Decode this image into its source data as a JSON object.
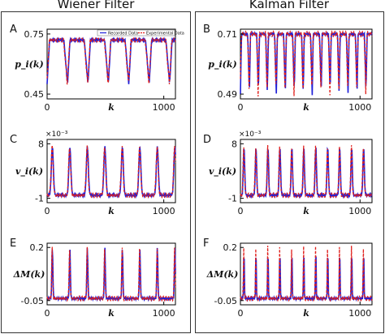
{
  "columns": [
    "Wiener Filter",
    "Kalman Filter"
  ],
  "chart_data": [
    {
      "panel": "A",
      "type": "line",
      "ylabel": "p_i(k)",
      "xlabel": "k",
      "yticks": [
        "0.45",
        "0.75"
      ],
      "ylim": [
        0.45,
        0.75
      ],
      "xticks": [
        "0",
        "1000"
      ],
      "xlim": [
        0,
        1100
      ],
      "legend": {
        "placement": "top-right",
        "entries": [
          "Recorded Data",
          "Experimental Data"
        ]
      },
      "series": [
        {
          "name": "Recorded Data",
          "color": "#1f1fd8"
        },
        {
          "name": "Experimental Data",
          "color": "#e0201c"
        }
      ],
      "signal": {
        "kind": "square",
        "period": 175,
        "low": 0.5,
        "high": 0.72
      }
    },
    {
      "panel": "B",
      "type": "line",
      "ylabel": "p_i(k)",
      "xlabel": "k",
      "yticks": [
        "0.49",
        "0.71"
      ],
      "ylim": [
        0.49,
        0.71
      ],
      "xticks": [
        "0",
        "1000"
      ],
      "xlim": [
        0,
        1100
      ],
      "series": [
        {
          "color": "#1f1fd8"
        },
        {
          "color": "#e0201c"
        }
      ],
      "signal": {
        "kind": "square",
        "period": 75,
        "low": 0.49,
        "high": 0.71
      }
    },
    {
      "panel": "C",
      "type": "line",
      "ylabel": "v_i(k)",
      "xlabel": "k",
      "yticks": [
        "-1",
        "8"
      ],
      "ylim": [
        -1,
        8
      ],
      "multiplier": "×10⁻³",
      "xticks": [
        "0",
        "1000"
      ],
      "xlim": [
        0,
        1100
      ],
      "series": [
        {
          "color": "#1f1fd8"
        },
        {
          "color": "#e0201c"
        }
      ],
      "signal": {
        "kind": "pulse",
        "period": 150,
        "low": -0.5,
        "high": 7.5
      }
    },
    {
      "panel": "D",
      "type": "line",
      "ylabel": "v_i(k)",
      "xlabel": "k",
      "yticks": [
        "-1",
        "8"
      ],
      "ylim": [
        -1,
        8
      ],
      "multiplier": "×10⁻³",
      "xticks": [
        "0",
        "1000"
      ],
      "xlim": [
        0,
        1100
      ],
      "series": [
        {
          "color": "#1f1fd8"
        },
        {
          "color": "#e0201c"
        }
      ],
      "signal": {
        "kind": "pulse",
        "period": 100,
        "low": -0.5,
        "high": 7.5
      }
    },
    {
      "panel": "E",
      "type": "line",
      "ylabel": "ΔM(k)",
      "xlabel": "k",
      "yticks": [
        "-0.05",
        "0.2"
      ],
      "ylim": [
        -0.05,
        0.2
      ],
      "xticks": [
        "0",
        "1000"
      ],
      "xlim": [
        0,
        1100
      ],
      "series": [
        {
          "color": "#1f1fd8"
        },
        {
          "color": "#e0201c"
        }
      ],
      "signal": {
        "kind": "spike",
        "period": 150,
        "low": -0.04,
        "high": 0.2
      }
    },
    {
      "panel": "F",
      "type": "line",
      "ylabel": "ΔM(k)",
      "xlabel": "k",
      "yticks": [
        "-0.05",
        "0.2"
      ],
      "ylim": [
        -0.05,
        0.2
      ],
      "xticks": [
        "0",
        "1000"
      ],
      "xlim": [
        0,
        1100
      ],
      "series": [
        {
          "color": "#1f1fd8"
        },
        {
          "color": "#e0201c"
        }
      ],
      "signal": {
        "kind": "spike",
        "period": 100,
        "low": -0.04,
        "high": 0.2
      }
    }
  ]
}
